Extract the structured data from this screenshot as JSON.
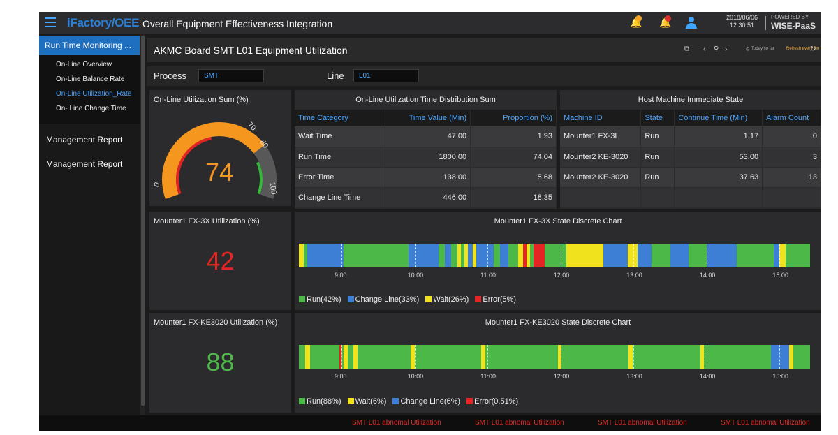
{
  "header": {
    "brand": "iFactory/OEE",
    "title": "Overall Equipment Effectiveness Integration",
    "date": "2018/06/06",
    "time": "12:30:51",
    "powered_label": "POWERED BY",
    "powered_name": "WISE-PaaS",
    "badge_colors": [
      "#f5a623",
      "#e03030"
    ]
  },
  "sidebar": {
    "section": "Run Time Monitoring ...",
    "items": [
      {
        "label": "On-Line Overview"
      },
      {
        "label": "On-Line Balance Rate"
      },
      {
        "label": "On-Line Utilization_Rate"
      },
      {
        "label": "On- Line Change Time"
      }
    ],
    "groups": [
      {
        "label": "Management Report"
      },
      {
        "label": "Management Report"
      }
    ]
  },
  "page": {
    "title": "AKMC Board SMT L01 Equipment Utilization",
    "today_label": "Today so far",
    "refresh_label": "Refresh every 5m"
  },
  "filters": {
    "process_label": "Process",
    "process_value": "SMT",
    "line_label": "Line",
    "line_value": "L01"
  },
  "gauge": {
    "title": "On-Line Utilization Sum (%)",
    "value": 74,
    "value_text": "74",
    "ticks": [
      "0",
      "70",
      "80",
      "100"
    ]
  },
  "distribution": {
    "title": "On-Line Utilization Time Distribution Sum",
    "headers": [
      "Time Category",
      "Time Value (Min)",
      "Proportion (%)"
    ],
    "rows": [
      [
        "Wait Time",
        "47.00",
        "1.93"
      ],
      [
        "Run Time",
        "1800.00",
        "74.04"
      ],
      [
        "Error Time",
        "138.00",
        "5.68"
      ],
      [
        "Change Line Time",
        "446.00",
        "18.35"
      ]
    ]
  },
  "host": {
    "title": "Host Machine Immediate State",
    "headers": [
      "Machine ID",
      "State",
      "Continue Time (Min)",
      "Alarm Count"
    ],
    "rows": [
      [
        "Mounter1 FX-3L",
        "Run",
        "1.17",
        "0"
      ],
      [
        "Mounter2 KE-3020",
        "Run",
        "53.00",
        "3"
      ],
      [
        "Mounter2 KE-3020",
        "Run",
        "37.63",
        "13"
      ],
      [
        "",
        "",
        "",
        ""
      ]
    ]
  },
  "m1": {
    "util_title": "Mounter1 FX-3X Utilization (%)",
    "util_value": "42",
    "chart_title": "Mounter1 FX-3X State Discrete Chart",
    "legend": [
      "Run(42%)",
      "Change Line(33%)",
      "Wait(26%)",
      "Error(5%)"
    ]
  },
  "m2": {
    "util_title": "Mounter1 FX-KE3020 Utilization (%)",
    "util_value": "88",
    "chart_title": "Mounter1 FX-KE3020 State Discrete Chart",
    "legend": [
      "Run(88%)",
      "Wait(6%)",
      "Change Line(6%)",
      "Error(0.51%)"
    ]
  },
  "time_ticks": [
    "9:00",
    "10:00",
    "11:00",
    "12:00",
    "13:00",
    "14:00",
    "15:00"
  ],
  "colors": {
    "run": "#4cb848",
    "change": "#3c7fd4",
    "wait": "#f0e31e",
    "error": "#e52424",
    "accent": "#3fa6ff"
  },
  "chart_data": [
    {
      "type": "bar",
      "title": "Mounter1 FX-3X State Discrete Chart",
      "x_start": "8:25",
      "x_end": "15:25",
      "segments": [
        {
          "start": "8:25",
          "end": "8:29",
          "state": "wait"
        },
        {
          "start": "8:29",
          "end": "8:32",
          "state": "run"
        },
        {
          "start": "8:32",
          "end": "9:02",
          "state": "change"
        },
        {
          "start": "9:02",
          "end": "9:55",
          "state": "run"
        },
        {
          "start": "9:55",
          "end": "10:20",
          "state": "change"
        },
        {
          "start": "10:20",
          "end": "10:25",
          "state": "run"
        },
        {
          "start": "10:25",
          "end": "10:30",
          "state": "change"
        },
        {
          "start": "10:30",
          "end": "10:35",
          "state": "run"
        },
        {
          "start": "10:35",
          "end": "10:38",
          "state": "wait"
        },
        {
          "start": "10:38",
          "end": "10:41",
          "state": "run"
        },
        {
          "start": "10:41",
          "end": "10:44",
          "state": "wait"
        },
        {
          "start": "10:44",
          "end": "10:48",
          "state": "change"
        },
        {
          "start": "10:48",
          "end": "10:51",
          "state": "wait"
        },
        {
          "start": "10:51",
          "end": "11:05",
          "state": "change"
        },
        {
          "start": "11:05",
          "end": "11:10",
          "state": "run"
        },
        {
          "start": "11:10",
          "end": "11:17",
          "state": "change"
        },
        {
          "start": "11:17",
          "end": "11:25",
          "state": "run"
        },
        {
          "start": "11:25",
          "end": "11:29",
          "state": "wait"
        },
        {
          "start": "11:29",
          "end": "11:32",
          "state": "error"
        },
        {
          "start": "11:32",
          "end": "11:35",
          "state": "wait"
        },
        {
          "start": "11:35",
          "end": "11:38",
          "state": "run"
        },
        {
          "start": "11:38",
          "end": "11:47",
          "state": "error"
        },
        {
          "start": "11:47",
          "end": "12:05",
          "state": "run"
        },
        {
          "start": "12:05",
          "end": "12:35",
          "state": "wait"
        },
        {
          "start": "12:35",
          "end": "12:55",
          "state": "change"
        },
        {
          "start": "12:55",
          "end": "13:03",
          "state": "wait"
        },
        {
          "start": "13:03",
          "end": "13:15",
          "state": "change"
        },
        {
          "start": "13:15",
          "end": "13:30",
          "state": "run"
        },
        {
          "start": "13:30",
          "end": "13:45",
          "state": "change"
        },
        {
          "start": "13:45",
          "end": "14:00",
          "state": "run"
        },
        {
          "start": "14:00",
          "end": "14:25",
          "state": "change"
        },
        {
          "start": "14:25",
          "end": "14:55",
          "state": "run"
        },
        {
          "start": "14:55",
          "end": "15:00",
          "state": "change"
        },
        {
          "start": "15:00",
          "end": "15:05",
          "state": "wait"
        },
        {
          "start": "15:05",
          "end": "15:25",
          "state": "run"
        }
      ]
    },
    {
      "type": "bar",
      "title": "Mounter1 FX-KE3020 State Discrete Chart",
      "x_start": "8:25",
      "x_end": "15:25",
      "segments": [
        {
          "start": "8:25",
          "end": "8:30",
          "state": "run"
        },
        {
          "start": "8:30",
          "end": "8:34",
          "state": "wait"
        },
        {
          "start": "8:34",
          "end": "8:58",
          "state": "run"
        },
        {
          "start": "8:58",
          "end": "9:00",
          "state": "error"
        },
        {
          "start": "9:00",
          "end": "9:02",
          "state": "run"
        },
        {
          "start": "9:02",
          "end": "9:05",
          "state": "wait"
        },
        {
          "start": "9:05",
          "end": "9:10",
          "state": "run"
        },
        {
          "start": "9:10",
          "end": "9:13",
          "state": "wait"
        },
        {
          "start": "9:13",
          "end": "9:57",
          "state": "run"
        },
        {
          "start": "9:57",
          "end": "10:00",
          "state": "wait"
        },
        {
          "start": "10:00",
          "end": "10:55",
          "state": "run"
        },
        {
          "start": "10:55",
          "end": "10:58",
          "state": "wait"
        },
        {
          "start": "10:58",
          "end": "11:58",
          "state": "run"
        },
        {
          "start": "11:58",
          "end": "12:01",
          "state": "wait"
        },
        {
          "start": "12:01",
          "end": "12:56",
          "state": "run"
        },
        {
          "start": "12:56",
          "end": "12:59",
          "state": "wait"
        },
        {
          "start": "12:59",
          "end": "13:55",
          "state": "run"
        },
        {
          "start": "13:55",
          "end": "13:58",
          "state": "wait"
        },
        {
          "start": "13:58",
          "end": "14:53",
          "state": "run"
        },
        {
          "start": "14:53",
          "end": "15:08",
          "state": "change"
        },
        {
          "start": "15:08",
          "end": "15:11",
          "state": "wait"
        },
        {
          "start": "15:11",
          "end": "15:25",
          "state": "run"
        }
      ]
    }
  ],
  "footer": {
    "alerts": [
      "SMT L01 abnomal Utilization",
      "SMT L01 abnomal Utilization",
      "SMT L01 abnomal Utilization",
      "SMT L01 abnomal Utilization"
    ]
  }
}
